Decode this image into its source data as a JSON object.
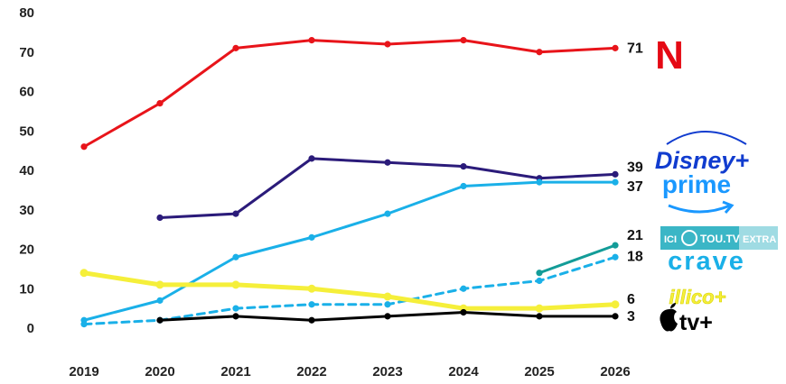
{
  "chart_data": {
    "type": "line",
    "x": [
      "2019",
      "2020",
      "2021",
      "2022",
      "2023",
      "2024",
      "2025",
      "2026"
    ],
    "ylim": [
      0,
      80
    ],
    "yticks": [
      0,
      10,
      20,
      30,
      40,
      50,
      60,
      70,
      80
    ],
    "grid": false,
    "series": [
      {
        "name": "Netflix",
        "color": "#e8141a",
        "dashed": false,
        "width": 3,
        "values": [
          46,
          57,
          71,
          73,
          72,
          73,
          70,
          71
        ],
        "end_label": "71"
      },
      {
        "name": "Disney+",
        "color": "#2b1b7a",
        "dashed": false,
        "width": 3,
        "values": [
          null,
          28,
          29,
          43,
          42,
          41,
          38,
          39
        ],
        "end_label": "39"
      },
      {
        "name": "Prime",
        "color": "#1ab0e8",
        "dashed": false,
        "width": 3,
        "values": [
          2,
          7,
          18,
          23,
          29,
          36,
          37,
          37
        ],
        "end_label": "37"
      },
      {
        "name": "ICI TOU.TV EXTRA",
        "color": "#139c98",
        "dashed": false,
        "width": 3,
        "values": [
          null,
          null,
          null,
          null,
          null,
          null,
          14,
          21
        ],
        "end_label": "21"
      },
      {
        "name": "Crave",
        "color": "#1ab0e8",
        "dashed": true,
        "width": 3,
        "values": [
          1,
          2,
          5,
          6,
          6,
          10,
          12,
          18
        ],
        "end_label": "18"
      },
      {
        "name": "illico+",
        "color": "#f5ef3a",
        "dashed": false,
        "width": 5,
        "values": [
          14,
          11,
          11,
          10,
          8,
          5,
          5,
          6
        ],
        "end_label": "6"
      },
      {
        "name": "Apple TV+",
        "color": "#000000",
        "dashed": false,
        "width": 3,
        "values": [
          null,
          2,
          3,
          2,
          3,
          4,
          3,
          3
        ],
        "end_label": "3"
      }
    ]
  },
  "logos": {
    "netflix": "N",
    "disney": "Disney+",
    "prime": "prime",
    "toutv_ici": "ICI",
    "toutv_main": "TOU.TV",
    "toutv_extra": "EXTRA",
    "crave": "crave",
    "illico": "illico+",
    "appletv": "tv+",
    "colors": {
      "netflix": "#e50914",
      "disney": "#113ccf",
      "prime": "#1a98ff",
      "toutv": "#3bb6c6",
      "crave": "#1ab0e8",
      "illico": "#f5ef3a",
      "apple": "#000000"
    }
  }
}
